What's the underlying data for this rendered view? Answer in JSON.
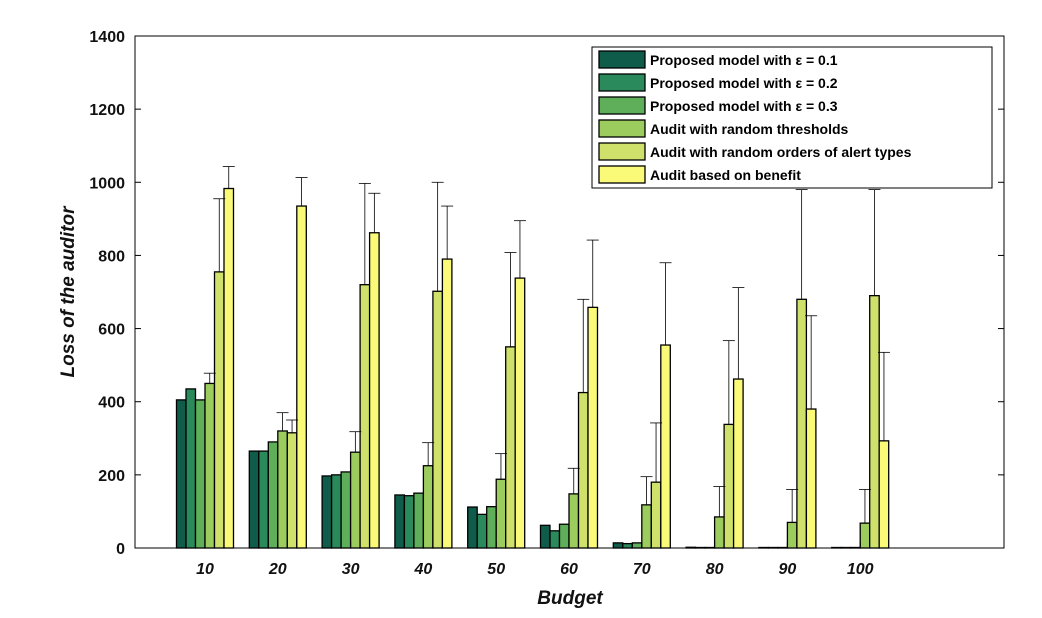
{
  "chart_data": {
    "type": "bar",
    "xlabel": "Budget",
    "ylabel": "Loss of the auditor",
    "ylim": [
      0,
      1400
    ],
    "yticks": [
      0,
      200,
      400,
      600,
      800,
      1000,
      1200,
      1400
    ],
    "categories": [
      "10",
      "20",
      "30",
      "40",
      "50",
      "60",
      "70",
      "80",
      "90",
      "100"
    ],
    "grid": false,
    "legend_position": "top-right",
    "series": [
      {
        "name": "Proposed model with ε = 0.1",
        "color": "#0f5c4a",
        "values": [
          405,
          265,
          197,
          145,
          112,
          62,
          14,
          2,
          1,
          1
        ],
        "error_upper": [
          null,
          null,
          null,
          null,
          null,
          null,
          null,
          null,
          null,
          null
        ]
      },
      {
        "name": "Proposed model with ε = 0.2",
        "color": "#2a8a5c",
        "values": [
          435,
          265,
          200,
          143,
          92,
          47,
          12,
          1,
          1,
          1
        ],
        "error_upper": [
          null,
          null,
          null,
          null,
          null,
          null,
          null,
          null,
          null,
          null
        ]
      },
      {
        "name": "Proposed model with ε = 0.3",
        "color": "#5fae5a",
        "values": [
          405,
          290,
          208,
          150,
          113,
          65,
          14,
          1,
          1,
          1
        ],
        "error_upper": [
          null,
          null,
          null,
          null,
          null,
          null,
          null,
          null,
          null,
          null
        ]
      },
      {
        "name": "Audit with random thresholds",
        "color": "#9ccc5e",
        "values": [
          450,
          320,
          262,
          225,
          188,
          148,
          118,
          85,
          70,
          68
        ],
        "error_upper": [
          478,
          370,
          318,
          288,
          258,
          218,
          195,
          168,
          160,
          160
        ]
      },
      {
        "name": "Audit with random orders of alert types",
        "color": "#cfe06b",
        "values": [
          755,
          315,
          720,
          702,
          550,
          425,
          180,
          338,
          680,
          690
        ],
        "error_upper": [
          955,
          350,
          997,
          1000,
          808,
          680,
          342,
          567,
          980,
          980
        ]
      },
      {
        "name": "Audit based on benefit",
        "color": "#fafa78",
        "values": [
          983,
          935,
          862,
          790,
          738,
          658,
          555,
          462,
          380,
          293
        ],
        "error_upper": [
          1043,
          1013,
          970,
          935,
          895,
          842,
          780,
          712,
          635,
          535
        ]
      }
    ]
  }
}
